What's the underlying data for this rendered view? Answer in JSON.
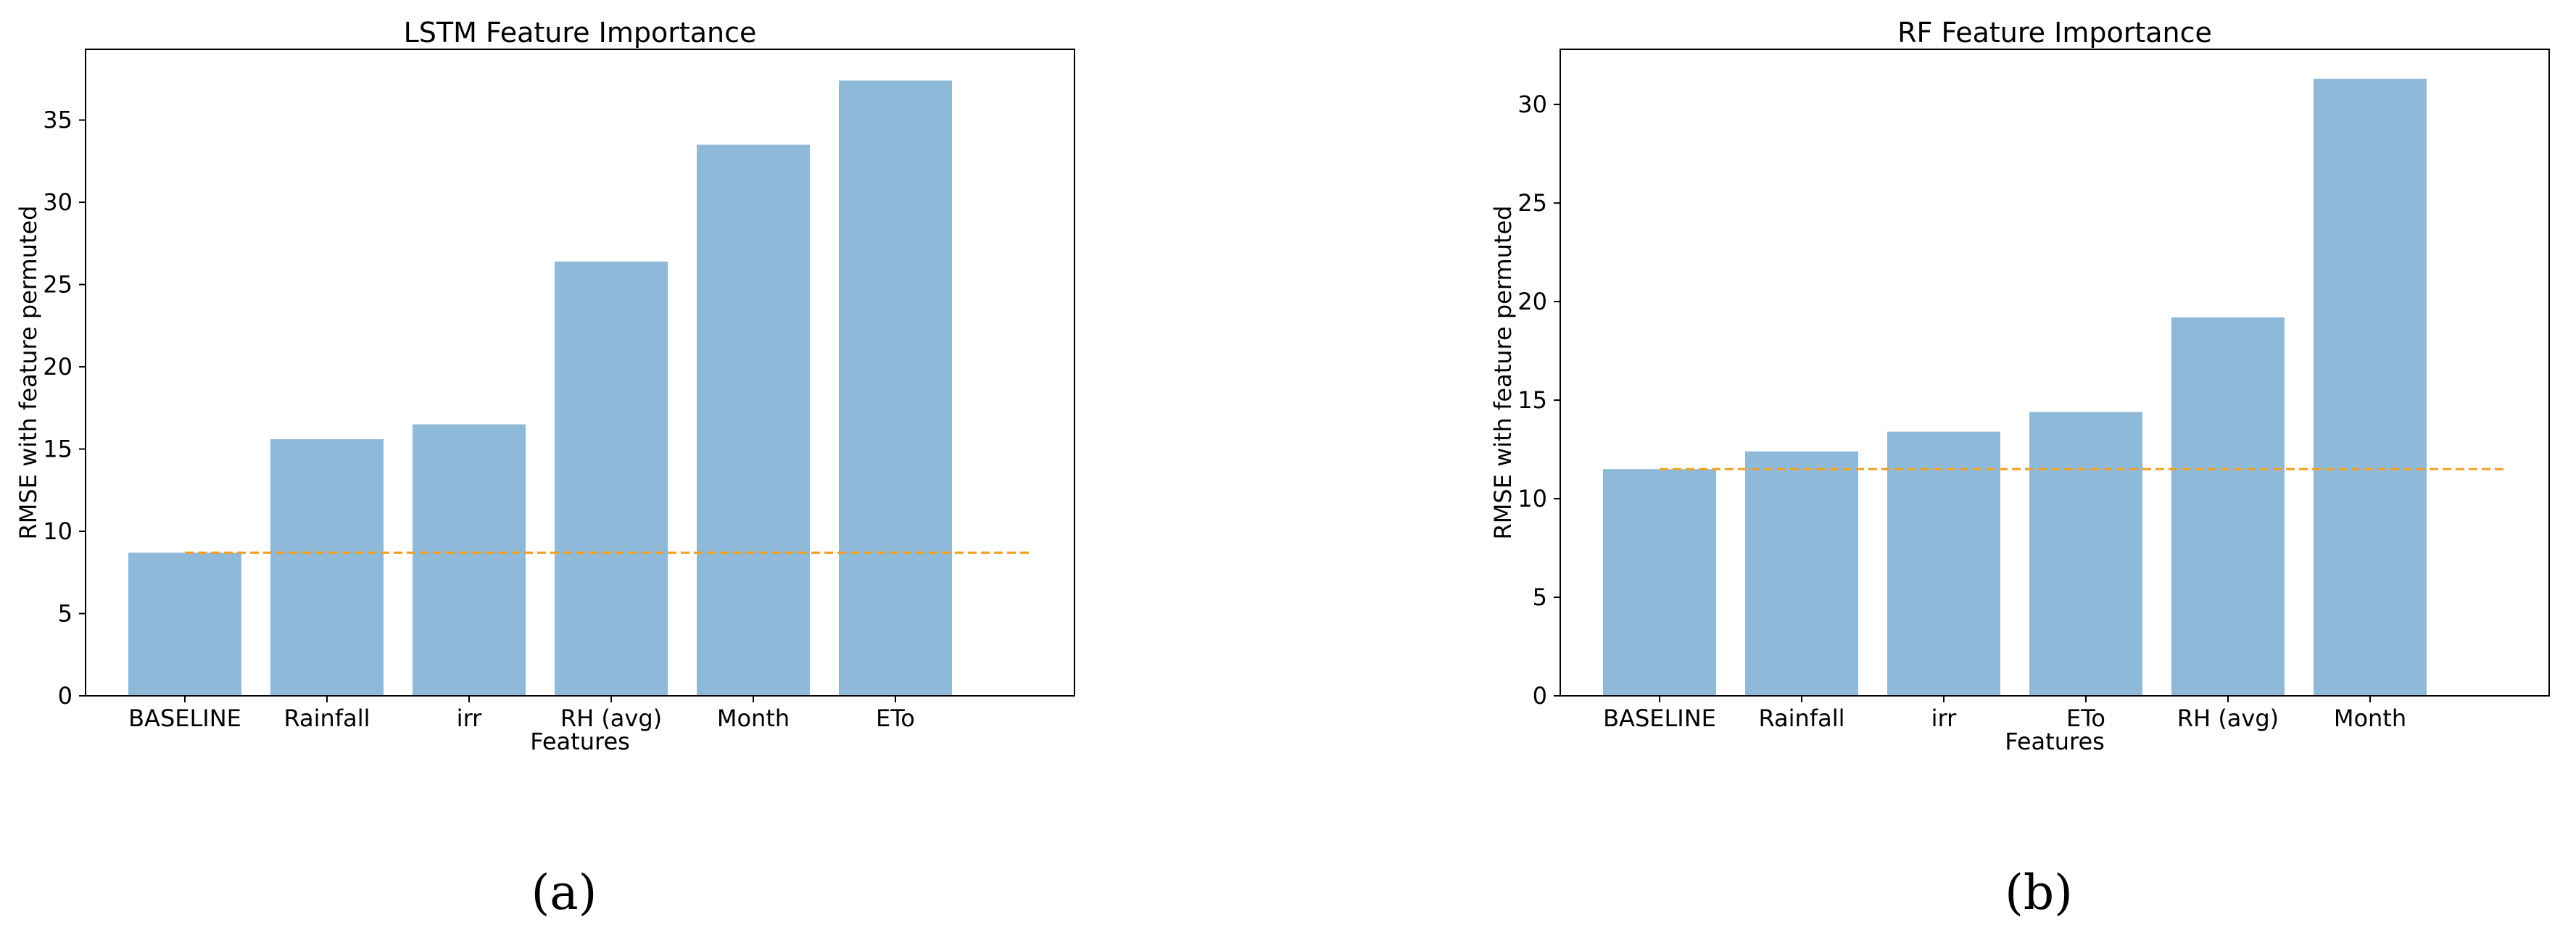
{
  "chart_data": [
    {
      "type": "bar",
      "title": "LSTM Feature Importance",
      "xlabel": "Features",
      "ylabel": "RMSE with feature permuted",
      "categories": [
        "BASELINE",
        "Rainfall",
        "irr",
        "RH (avg)",
        "Month",
        "ETo"
      ],
      "values": [
        8.7,
        15.6,
        16.5,
        26.4,
        33.5,
        37.4
      ],
      "baseline_value": 8.7,
      "ylim": [
        0,
        39.3
      ],
      "yticks": [
        0,
        5,
        10,
        15,
        20,
        25,
        30,
        35
      ],
      "bar_color": "#8fb9d9",
      "baseline_color": "#f0a020",
      "grid": false,
      "panel_label": "(a)"
    },
    {
      "type": "bar",
      "title": "RF Feature Importance",
      "xlabel": "Features",
      "ylabel": "RMSE with feature permuted",
      "categories": [
        "BASELINE",
        "Rainfall",
        "irr",
        "ETo",
        "RH (avg)",
        "Month"
      ],
      "values": [
        11.5,
        12.4,
        13.4,
        14.4,
        19.2,
        31.3
      ],
      "baseline_value": 11.5,
      "ylim": [
        0,
        32.8
      ],
      "yticks": [
        0,
        5,
        10,
        15,
        20,
        25,
        30
      ],
      "bar_color": "#8fb9d9",
      "baseline_color": "#f0a020",
      "grid": false,
      "panel_label": "(b)"
    }
  ]
}
